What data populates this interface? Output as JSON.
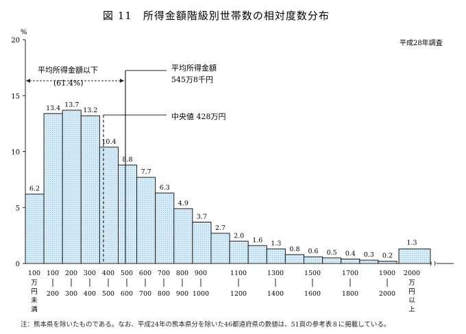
{
  "chart_data": {
    "type": "bar",
    "title": "図 11　所得金額階級別世帯数の相対度数分布",
    "survey": "平成28年調査",
    "yunit": "%",
    "ylim": [
      0,
      20
    ],
    "yticks": [
      "0",
      "5",
      "10",
      "15",
      "20"
    ],
    "grid": false,
    "values": [
      6.2,
      13.4,
      13.7,
      13.2,
      10.4,
      8.8,
      7.7,
      6.3,
      4.9,
      3.7,
      2.7,
      2.0,
      1.6,
      1.3,
      0.8,
      0.6,
      0.5,
      0.4,
      0.3,
      0.2
    ],
    "value_labels": [
      "6.2",
      "13.4",
      "13.7",
      "13.2",
      "10.4",
      "8.8",
      "7.7",
      "6.3",
      "4.9",
      "3.7",
      "2.7",
      "2.0",
      "1.6",
      "1.3",
      "0.8",
      "0.6",
      "0.5",
      "0.4",
      "0.3",
      "0.2"
    ],
    "last_value": 1.3,
    "last_value_label": "1.3",
    "x_labels": [
      {
        "top": "100",
        "bottom": "万円未満"
      },
      {
        "top": "100",
        "bottom": "200"
      },
      {
        "top": "200",
        "bottom": "300"
      },
      {
        "top": "300",
        "bottom": "400"
      },
      {
        "top": "400",
        "bottom": "500"
      },
      {
        "top": "500",
        "bottom": "600"
      },
      {
        "top": "600",
        "bottom": "700"
      },
      {
        "top": "700",
        "bottom": "800"
      },
      {
        "top": "800",
        "bottom": "900"
      },
      {
        "top": "900",
        "bottom": "1000"
      },
      {
        "top": "1100",
        "bottom": "1200"
      },
      {
        "top": "1300",
        "bottom": "1400"
      },
      {
        "top": "1500",
        "bottom": "1600"
      },
      {
        "top": "1700",
        "bottom": "1800"
      },
      {
        "top": "1900",
        "bottom": "2000"
      },
      {
        "top": "2000",
        "bottom": "万円以上"
      }
    ],
    "annotations": {
      "below_mean_label": "平均所得金額以下",
      "below_mean_pct": "(61.4%)",
      "mean_label": "平均所得金額",
      "mean_value": "545万8千円",
      "median_label": "中央値 428万円"
    },
    "mean_value_num": 545.8,
    "median_value_num": 428,
    "bar_color": "#d6ecf8",
    "bar_border": "#1a1a1a"
  },
  "note": "注：熊本県を除いたものである。なお、平成24年の熊本県分を除いた46都道府県の数値は、51頁の参考表８に掲載している。"
}
